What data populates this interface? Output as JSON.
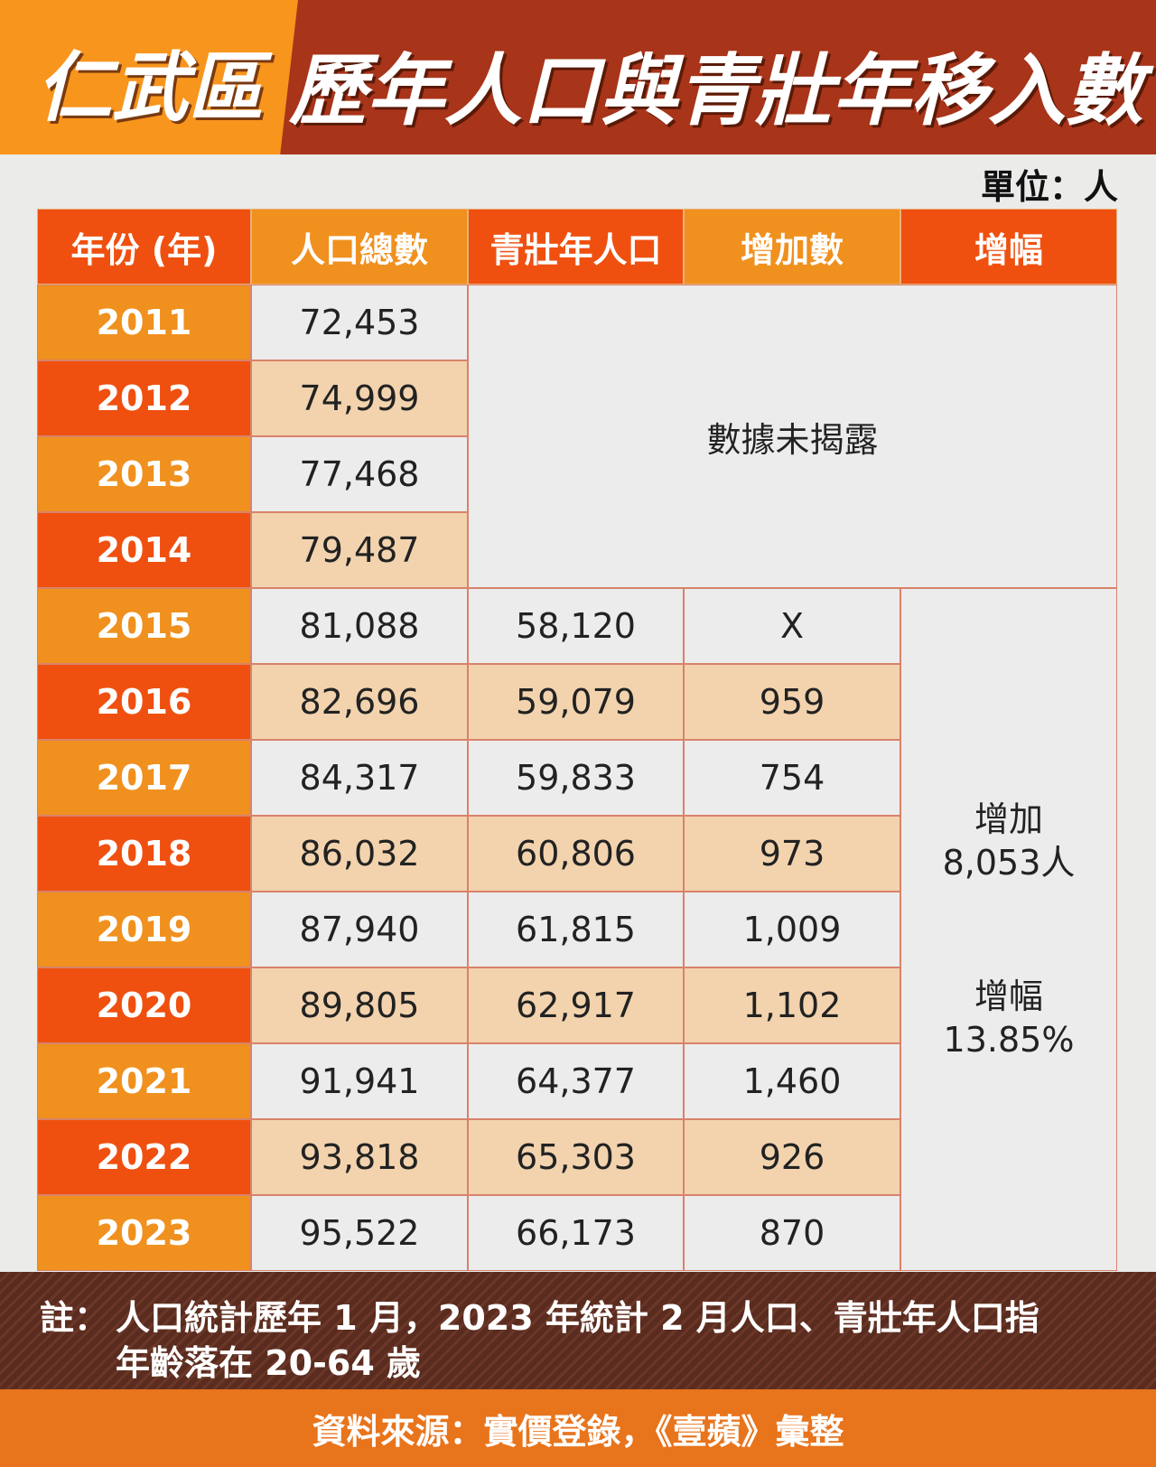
{
  "header": {
    "district": "仁武區",
    "title": "歷年人口與青壯年移入數"
  },
  "unit": "單位：人",
  "table": {
    "columns": [
      "年份 (年)",
      "人口總數",
      "青壯年人口",
      "增加數",
      "增幅"
    ],
    "rows": [
      [
        "2011",
        "72,453"
      ],
      [
        "2012",
        "74,999"
      ],
      [
        "2013",
        "77,468"
      ],
      [
        "2014",
        "79,487"
      ],
      [
        "2015",
        "81,088",
        "58,120",
        "X"
      ],
      [
        "2016",
        "82,696",
        "59,079",
        "959"
      ],
      [
        "2017",
        "84,317",
        "59,833",
        "754"
      ],
      [
        "2018",
        "86,032",
        "60,806",
        "973"
      ],
      [
        "2019",
        "87,940",
        "61,815",
        "1,009"
      ],
      [
        "2020",
        "89,805",
        "62,917",
        "1,102"
      ],
      [
        "2021",
        "91,941",
        "64,377",
        "1,460"
      ],
      [
        "2022",
        "93,818",
        "65,303",
        "926"
      ],
      [
        "2023",
        "95,522",
        "66,173",
        "870"
      ]
    ],
    "undisclosed": "數據未揭露",
    "summary": [
      "增加",
      "8,053人",
      "增幅",
      "13.85%"
    ]
  },
  "note": {
    "label": "註：",
    "lines": [
      "人口統計歷年 1 月，2023 年統計 2 月人口、青壯年人口指",
      "年齡落在 20-64 歲"
    ]
  },
  "source": "資料來源：實價登錄，《壹蘋》彙整"
}
